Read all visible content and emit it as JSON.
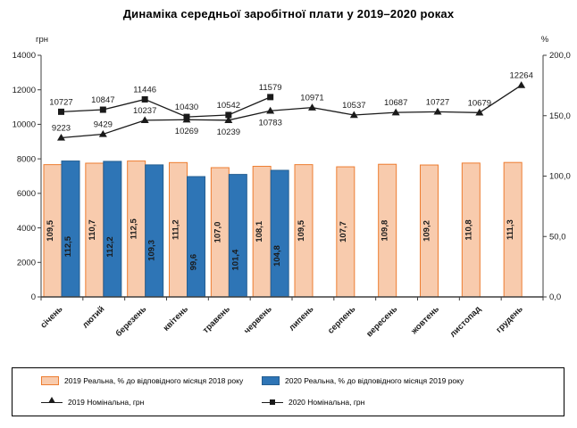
{
  "title": "Динаміка середньої заробітної плати у 2019–2020 роках",
  "chart_data": {
    "type": "combo (bar + line)",
    "categories": [
      "січень",
      "лютий",
      "березень",
      "квітень",
      "травень",
      "червень",
      "липень",
      "серпень",
      "вересень",
      "жовтень",
      "листопад",
      "грудень"
    ],
    "left_axis": {
      "unit": "грн",
      "min": 0,
      "max": 14000,
      "tick_step": 2000,
      "tick_labels": [
        "0",
        "2000",
        "4000",
        "6000",
        "8000",
        "10000",
        "12000",
        "14000"
      ]
    },
    "right_axis": {
      "unit": "%",
      "min": 0,
      "max": 200,
      "tick_step": 50,
      "tick_labels": [
        "0,0",
        "50,0",
        "100,0",
        "150,0",
        "200,0"
      ]
    },
    "grid": "off",
    "legend_position": "bottom-box",
    "series": [
      {
        "name": "2019 Реальна, % до відповідного місяця 2018 року",
        "type": "bar",
        "axis": "right",
        "fill": "#F8CBAD",
        "stroke": "#ED7D31",
        "values": [
          109.5,
          110.7,
          112.5,
          111.2,
          107.0,
          108.1,
          109.5,
          107.7,
          109.8,
          109.2,
          110.8,
          111.3
        ],
        "labels": [
          "109,5",
          "110,7",
          "112,5",
          "111,2",
          "107,0",
          "108,1",
          "109,5",
          "107,7",
          "109,8",
          "109,2",
          "110,8",
          "111,3"
        ]
      },
      {
        "name": "2020 Реальна, % до відповідного місяця 2019 року",
        "type": "bar",
        "axis": "right",
        "fill": "#2E75B6",
        "stroke": "#255E91",
        "values": [
          112.5,
          112.2,
          109.3,
          99.6,
          101.4,
          104.8
        ],
        "labels": [
          "112,5",
          "112,2",
          "109,3",
          "99,6",
          "101,4",
          "104,8"
        ]
      },
      {
        "name": "2019 Номінальна, грн",
        "type": "line",
        "marker": "triangle",
        "axis": "left",
        "color": "#1a1a1a",
        "values": [
          9223,
          9429,
          10237,
          10269,
          10239,
          10783,
          10971,
          10537,
          10687,
          10727,
          10679,
          12264
        ],
        "labels": [
          "9223",
          "9429",
          "10237",
          "10269",
          "10239",
          "10783",
          "10971",
          "10537",
          "10687",
          "10727",
          "10679",
          "12264"
        ],
        "label_side": [
          "above",
          "above",
          "above",
          "below",
          "below",
          "below",
          "above",
          "above",
          "above",
          "above",
          "above",
          "above"
        ]
      },
      {
        "name": "2020 Номінальна, грн",
        "type": "line",
        "marker": "square",
        "axis": "left",
        "color": "#1a1a1a",
        "values": [
          10727,
          10847,
          11446,
          10430,
          10542,
          11579
        ],
        "labels": [
          "10727",
          "10847",
          "11446",
          "10430",
          "10542",
          "11579"
        ],
        "label_side": [
          "above",
          "above",
          "above",
          "above",
          "above",
          "above"
        ]
      }
    ],
    "legend": {
      "items": [
        {
          "label": "2019 Реальна, % до відповідного місяця 2018 року",
          "marker": "bar-swatch",
          "fill": "#F8CBAD",
          "stroke": "#ED7D31"
        },
        {
          "label": "2020 Реальна, % до відповідного місяця 2019 року",
          "marker": "bar-swatch",
          "fill": "#2E75B6",
          "stroke": "#255E91"
        },
        {
          "label": "2019 Номінальна, грн",
          "marker": "line-triangle",
          "color": "#1a1a1a"
        },
        {
          "label": "2020 Номінальна, грн",
          "marker": "line-square",
          "color": "#1a1a1a"
        }
      ]
    }
  }
}
